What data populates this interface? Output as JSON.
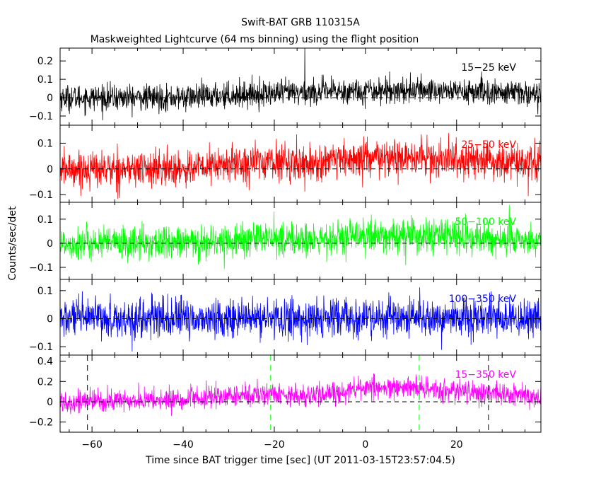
{
  "figure": {
    "title": "Swift-BAT GRB 110315A",
    "subtitle": "Maskweighted Lightcurve (64 ms binning) using the flight position",
    "ylabel": "Counts/sec/det",
    "xlabel": "Time since BAT trigger time [sec] (UT 2011-03-15T23:57:04.5)"
  },
  "chart_data": [
    {
      "type": "line",
      "band": "15-25 keV",
      "band_label": "15−25 keV",
      "color": "#000000",
      "xlim": [
        -67,
        38.5
      ],
      "ylim": [
        -0.15,
        0.27
      ],
      "yticks": [
        -0.1,
        0,
        0.1,
        0.2
      ],
      "ytick_labels": [
        "−0.1",
        "0",
        "0.1",
        "0.2"
      ],
      "noise_sigma": 0.035,
      "spike": {
        "x": -13.3,
        "y": 0.27
      },
      "mean_profile": [
        [
          -67,
          0.0
        ],
        [
          -40,
          0.0
        ],
        [
          -25,
          0.02
        ],
        [
          -10,
          0.03
        ],
        [
          0,
          0.04
        ],
        [
          15,
          0.04
        ],
        [
          38.5,
          0.02
        ]
      ]
    },
    {
      "type": "line",
      "band": "25-50 keV",
      "band_label": "25−50 keV",
      "color": "#ff0000",
      "xlim": [
        -67,
        38.5
      ],
      "ylim": [
        -0.13,
        0.17
      ],
      "yticks": [
        -0.1,
        0,
        0.1
      ],
      "ytick_labels": [
        "−0.1",
        "0",
        "0.1"
      ],
      "noise_sigma": 0.035,
      "mean_profile": [
        [
          -67,
          0.0
        ],
        [
          -40,
          0.0
        ],
        [
          -22,
          0.03
        ],
        [
          -10,
          0.02
        ],
        [
          0,
          0.04
        ],
        [
          15,
          0.04
        ],
        [
          38.5,
          0.02
        ]
      ]
    },
    {
      "type": "line",
      "band": "50-100 keV",
      "band_label": "50−100 keV",
      "color": "#00ff00",
      "xlim": [
        -67,
        38.5
      ],
      "ylim": [
        -0.15,
        0.17
      ],
      "yticks": [
        -0.1,
        0,
        0.1
      ],
      "ytick_labels": [
        "−0.1",
        "0",
        "0.1"
      ],
      "noise_sigma": 0.035,
      "mean_profile": [
        [
          -67,
          0.0
        ],
        [
          -40,
          0.0
        ],
        [
          -22,
          0.02
        ],
        [
          -10,
          0.01
        ],
        [
          0,
          0.03
        ],
        [
          15,
          0.03
        ],
        [
          38.5,
          0.01
        ]
      ]
    },
    {
      "type": "line",
      "band": "100-350 keV",
      "band_label": "100−350 keV",
      "color": "#0000ff",
      "xlim": [
        -67,
        38.5
      ],
      "ylim": [
        -0.13,
        0.14
      ],
      "yticks": [
        -0.1,
        0,
        0.1
      ],
      "ytick_labels": [
        "−0.1",
        "0",
        "0.1"
      ],
      "noise_sigma": 0.035,
      "mean_profile": [
        [
          -67,
          0.0
        ],
        [
          38.5,
          0.0
        ]
      ]
    },
    {
      "type": "line",
      "band": "15-350 keV",
      "band_label": "15−350 keV",
      "color": "#ff00ff",
      "xlim": [
        -67,
        38.5
      ],
      "ylim": [
        -0.3,
        0.46
      ],
      "yticks": [
        -0.2,
        0,
        0.2,
        0.4
      ],
      "ytick_labels": [
        "−0.2",
        "0",
        "0.2",
        "0.4"
      ],
      "noise_sigma": 0.055,
      "xticks": [
        -60,
        -40,
        -20,
        0,
        20
      ],
      "xtick_labels": [
        "−60",
        "−40",
        "−20",
        "0",
        "20"
      ],
      "vlines": [
        {
          "x": -61,
          "color": "#000000"
        },
        {
          "x": 27,
          "color": "#000000"
        },
        {
          "x": -20.8,
          "color": "#00ff00"
        },
        {
          "x": 11.8,
          "color": "#00ff00"
        }
      ],
      "mean_profile": [
        [
          -67,
          0.0
        ],
        [
          -40,
          0.02
        ],
        [
          -22,
          0.08
        ],
        [
          -10,
          0.06
        ],
        [
          0,
          0.14
        ],
        [
          15,
          0.12
        ],
        [
          38.5,
          0.05
        ]
      ]
    }
  ]
}
